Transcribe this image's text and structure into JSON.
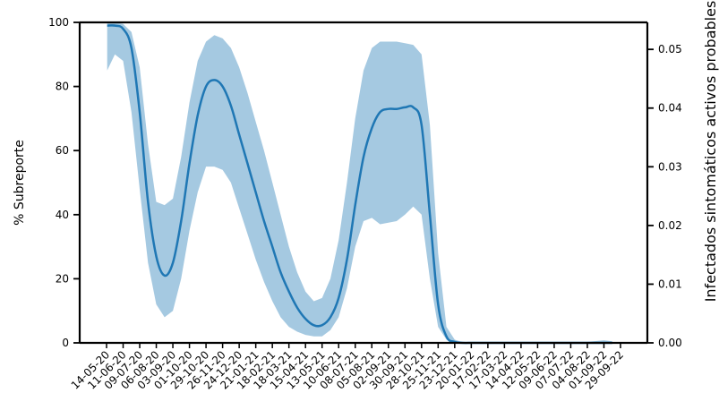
{
  "chart_data": {
    "type": "line",
    "title": "",
    "xlabel": "",
    "ylabel": "% Subreporte",
    "y2label": "Infectados sintomáticos activos probables",
    "ylim": [
      0,
      100
    ],
    "y2lim": [
      0,
      0.0546
    ],
    "yticks": [
      0,
      20,
      40,
      60,
      80,
      100
    ],
    "y2ticks": [
      "0.00",
      "0.01",
      "0.02",
      "0.03",
      "0.04",
      "0.05"
    ],
    "y2tick_values": [
      0,
      0.01,
      0.02,
      0.03,
      0.04,
      0.05
    ],
    "xticks": [
      "14-05-20",
      "11-06-20",
      "09-07-20",
      "06-08-20",
      "03-09-20",
      "01-10-20",
      "29-10-20",
      "26-11-20",
      "24-12-20",
      "21-01-21",
      "18-02-21",
      "18-03-21",
      "15-04-21",
      "13-05-21",
      "10-06-21",
      "08-07-21",
      "05-08-21",
      "02-09-21",
      "30-09-21",
      "28-10-21",
      "25-11-21",
      "23-12-21",
      "20-01-22",
      "17-02-22",
      "17-03-22",
      "14-04-22",
      "12-05-22",
      "09-06-22",
      "07-07-22",
      "04-08-22",
      "01-09-22",
      "29-09-22"
    ],
    "x_start": "2020-05-14",
    "x_end": "2022-09-29",
    "series": [
      {
        "axis": "left",
        "color": "#1f77b4",
        "x": [
          "2020-05-15",
          "2020-05-28",
          "2020-06-11",
          "2020-06-25",
          "2020-07-09",
          "2020-07-23",
          "2020-08-06",
          "2020-08-20",
          "2020-09-03",
          "2020-09-17",
          "2020-10-01",
          "2020-10-15",
          "2020-10-29",
          "2020-11-12",
          "2020-11-26",
          "2020-12-10",
          "2020-12-24",
          "2021-01-07",
          "2021-01-21",
          "2021-02-04",
          "2021-02-18",
          "2021-03-04",
          "2021-03-18",
          "2021-04-01",
          "2021-04-15",
          "2021-04-29",
          "2021-05-13",
          "2021-05-27",
          "2021-06-10",
          "2021-06-24",
          "2021-07-08",
          "2021-07-22",
          "2021-08-05",
          "2021-08-19",
          "2021-09-02",
          "2021-09-16",
          "2021-09-30",
          "2021-10-14",
          "2021-10-28",
          "2021-11-11",
          "2021-11-25",
          "2021-12-09",
          "2021-12-23",
          "2022-01-06",
          "2022-01-20",
          "2022-02-03",
          "2022-02-17",
          "2022-03-17",
          "2022-04-14",
          "2022-05-12",
          "2022-06-09",
          "2022-07-07",
          "2022-08-04",
          "2022-09-01",
          "2022-09-15"
        ],
        "y": [
          99,
          99,
          98,
          92,
          72,
          44,
          27,
          21,
          25,
          38,
          56,
          71,
          80,
          82,
          80,
          74,
          65,
          56,
          47,
          38,
          30,
          22,
          16,
          11,
          7.5,
          5.5,
          5.5,
          8,
          14,
          26,
          43,
          58,
          67,
          72,
          73,
          73,
          73.5,
          73.5,
          68,
          40,
          12,
          2,
          0.3,
          0,
          0,
          0,
          0,
          0,
          0,
          0,
          0,
          0,
          0,
          0,
          0
        ],
        "lower": [
          85,
          90,
          88,
          72,
          48,
          25,
          12,
          8,
          10,
          20,
          35,
          47,
          55,
          55,
          54,
          50,
          42,
          34,
          26,
          19,
          13,
          8,
          5,
          3.5,
          2.5,
          2,
          2,
          4,
          8,
          17,
          30,
          38,
          39,
          37,
          37.5,
          38,
          40,
          42.5,
          40,
          20,
          5,
          1,
          0,
          0,
          0,
          0,
          0,
          0,
          0,
          0,
          0,
          0,
          0,
          0,
          0
        ],
        "upper": [
          100,
          100,
          99.5,
          97,
          86,
          62,
          44,
          43,
          45,
          58,
          75,
          88,
          94,
          96,
          95,
          92,
          86,
          78,
          69,
          60,
          50,
          40,
          30,
          22,
          16,
          13,
          14,
          20,
          32,
          50,
          70,
          85,
          92,
          94,
          94,
          94,
          93.5,
          93,
          90,
          68,
          28,
          5,
          1,
          0.2,
          0,
          0,
          0,
          0,
          0,
          0,
          0,
          0.1,
          0.3,
          0.8,
          0.5
        ]
      }
    ],
    "grid": false,
    "legend": "none"
  }
}
